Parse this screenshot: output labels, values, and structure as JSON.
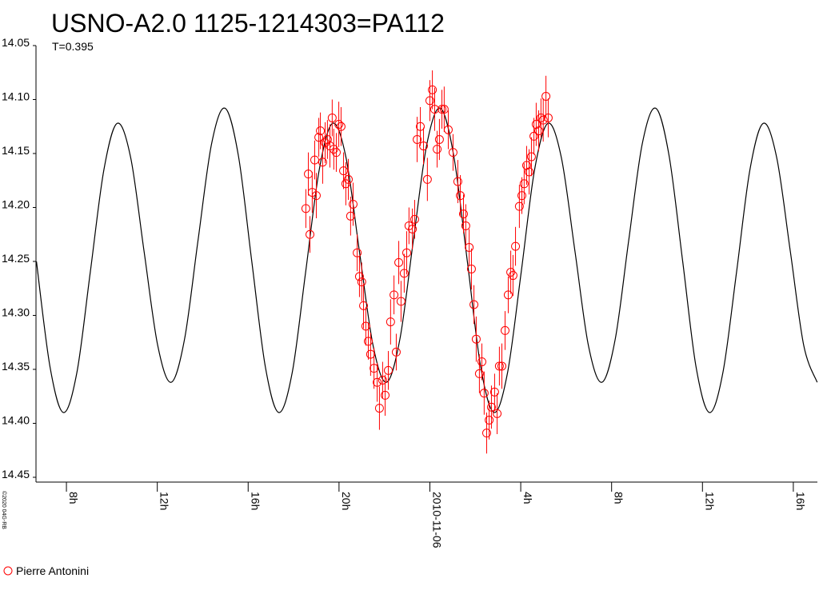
{
  "chart_data": {
    "type": "scatter",
    "title": "USNO-A2.0 1125-1214303=PA112",
    "subtitle": "T=0.395",
    "credit": "©2020 04G-RB",
    "xlim": [
      -17.34,
      17.06
    ],
    "xticks": [
      {
        "value": -16,
        "label": "8h"
      },
      {
        "value": -12,
        "label": "12h"
      },
      {
        "value": -8,
        "label": "16h"
      },
      {
        "value": -4,
        "label": "20h"
      },
      {
        "value": 0,
        "label": "2010-11-06"
      },
      {
        "value": 4,
        "label": "4h"
      },
      {
        "value": 8,
        "label": "8h"
      },
      {
        "value": 12,
        "label": "12h"
      },
      {
        "value": 16,
        "label": "16h"
      }
    ],
    "ylim": [
      14.05,
      14.45
    ],
    "y_inverted": true,
    "yticks": [
      {
        "value": 14.05,
        "label": "14.05"
      },
      {
        "value": 14.1,
        "label": "14.10"
      },
      {
        "value": 14.15,
        "label": "14.15"
      },
      {
        "value": 14.2,
        "label": "14.20"
      },
      {
        "value": 14.25,
        "label": "14.25"
      },
      {
        "value": 14.3,
        "label": "14.30"
      },
      {
        "value": 14.35,
        "label": "14.35"
      },
      {
        "value": 14.4,
        "label": "14.40"
      },
      {
        "value": 14.45,
        "label": "14.45"
      }
    ],
    "model": {
      "color": "#000000",
      "x": [
        -17.32,
        -16.72,
        -16.13,
        -15.54,
        -14.95,
        -14.35,
        -13.76,
        -13.17,
        -12.58,
        -11.98,
        -11.39,
        -10.8,
        -10.21,
        -9.61,
        -9.02,
        -8.43,
        -7.84,
        -7.24,
        -6.65,
        -6.06,
        -5.47,
        -4.87,
        -4.28,
        -3.69,
        -3.1,
        -2.5,
        -1.91,
        -1.32,
        -0.73,
        -0.13,
        0.46,
        1.05,
        1.65,
        2.24,
        2.83,
        3.42,
        4.02,
        4.61,
        5.2,
        5.79,
        6.39,
        6.98,
        7.57,
        8.16,
        8.75,
        9.35,
        9.94,
        10.53,
        11.13,
        11.72,
        12.31,
        12.9,
        13.5,
        14.09,
        14.68,
        15.27,
        15.87,
        16.46,
        17.05
      ],
      "values": [
        14.25,
        14.348,
        14.39,
        14.353,
        14.26,
        14.165,
        14.122,
        14.154,
        14.241,
        14.328,
        14.362,
        14.322,
        14.231,
        14.141,
        14.108,
        14.152,
        14.25,
        14.348,
        14.39,
        14.353,
        14.26,
        14.165,
        14.122,
        14.154,
        14.241,
        14.328,
        14.362,
        14.322,
        14.231,
        14.141,
        14.108,
        14.152,
        14.25,
        14.348,
        14.39,
        14.353,
        14.26,
        14.165,
        14.122,
        14.154,
        14.241,
        14.328,
        14.362,
        14.322,
        14.231,
        14.141,
        14.108,
        14.152,
        14.25,
        14.348,
        14.39,
        14.353,
        14.26,
        14.165,
        14.122,
        14.154,
        14.241,
        14.328,
        14.362
      ]
    },
    "series": [
      {
        "name": "Pierre Antonini",
        "color": "#ff0000",
        "x": [
          -5.46,
          -5.35,
          -5.28,
          -5.18,
          -5.07,
          -5.0,
          -4.89,
          -4.82,
          -4.72,
          -4.61,
          -4.51,
          -4.4,
          -4.3,
          -4.23,
          -4.12,
          -4.01,
          -3.91,
          -3.8,
          -3.7,
          -3.59,
          -3.49,
          -3.38,
          -3.2,
          -3.1,
          -3.0,
          -2.92,
          -2.82,
          -2.71,
          -2.61,
          -2.46,
          -2.32,
          -2.22,
          -2.08,
          -1.97,
          -1.83,
          -1.73,
          -1.58,
          -1.48,
          -1.37,
          -1.27,
          -1.13,
          -1.02,
          -0.92,
          -0.77,
          -0.67,
          -0.56,
          -0.42,
          -0.28,
          -0.11,
          0.0,
          0.11,
          0.21,
          0.32,
          0.42,
          0.53,
          0.63,
          0.81,
          1.02,
          1.23,
          1.34,
          1.48,
          1.58,
          1.73,
          1.83,
          1.94,
          2.04,
          2.18,
          2.29,
          2.39,
          2.5,
          2.61,
          2.71,
          2.85,
          2.96,
          3.06,
          3.17,
          3.31,
          3.45,
          3.56,
          3.66,
          3.77,
          3.94,
          4.05,
          4.15,
          4.26,
          4.37,
          4.47,
          4.58,
          4.68,
          4.79,
          4.89,
          4.99,
          5.11,
          5.21
        ],
        "values": [
          14.201,
          14.169,
          14.225,
          14.186,
          14.156,
          14.189,
          14.135,
          14.129,
          14.158,
          14.14,
          14.137,
          14.143,
          14.117,
          14.146,
          14.149,
          14.123,
          14.125,
          14.166,
          14.178,
          14.174,
          14.208,
          14.197,
          14.242,
          14.264,
          14.269,
          14.291,
          14.31,
          14.324,
          14.336,
          14.349,
          14.362,
          14.386,
          14.36,
          14.374,
          14.351,
          14.306,
          14.281,
          14.334,
          14.251,
          14.287,
          14.261,
          14.242,
          14.217,
          14.22,
          14.211,
          14.137,
          14.125,
          14.143,
          14.174,
          14.101,
          14.091,
          14.109,
          14.146,
          14.137,
          14.109,
          14.109,
          14.128,
          14.149,
          14.176,
          14.189,
          14.206,
          14.217,
          14.237,
          14.257,
          14.29,
          14.322,
          14.354,
          14.343,
          14.372,
          14.409,
          14.397,
          14.385,
          14.371,
          14.391,
          14.347,
          14.347,
          14.314,
          14.281,
          14.26,
          14.263,
          14.236,
          14.199,
          14.189,
          14.178,
          14.161,
          14.167,
          14.153,
          14.134,
          14.123,
          14.129,
          14.117,
          14.119,
          14.097,
          14.117
        ],
        "errors": [
          0.018,
          0.02,
          0.017,
          0.019,
          0.018,
          0.021,
          0.018,
          0.017,
          0.02,
          0.019,
          0.018,
          0.02,
          0.017,
          0.019,
          0.018,
          0.021,
          0.018,
          0.017,
          0.02,
          0.019,
          0.018,
          0.02,
          0.017,
          0.019,
          0.018,
          0.021,
          0.018,
          0.017,
          0.02,
          0.019,
          0.018,
          0.02,
          0.017,
          0.019,
          0.018,
          0.021,
          0.018,
          0.017,
          0.02,
          0.019,
          0.018,
          0.02,
          0.017,
          0.019,
          0.018,
          0.021,
          0.018,
          0.017,
          0.02,
          0.019,
          0.018,
          0.02,
          0.017,
          0.019,
          0.018,
          0.021,
          0.018,
          0.017,
          0.02,
          0.019,
          0.018,
          0.02,
          0.017,
          0.019,
          0.018,
          0.021,
          0.018,
          0.017,
          0.02,
          0.019,
          0.018,
          0.02,
          0.017,
          0.019,
          0.018,
          0.021,
          0.018,
          0.017,
          0.02,
          0.019,
          0.018,
          0.02,
          0.017,
          0.019,
          0.018,
          0.021,
          0.018,
          0.017,
          0.02,
          0.019,
          0.018,
          0.02,
          0.019,
          0.018
        ]
      }
    ]
  }
}
